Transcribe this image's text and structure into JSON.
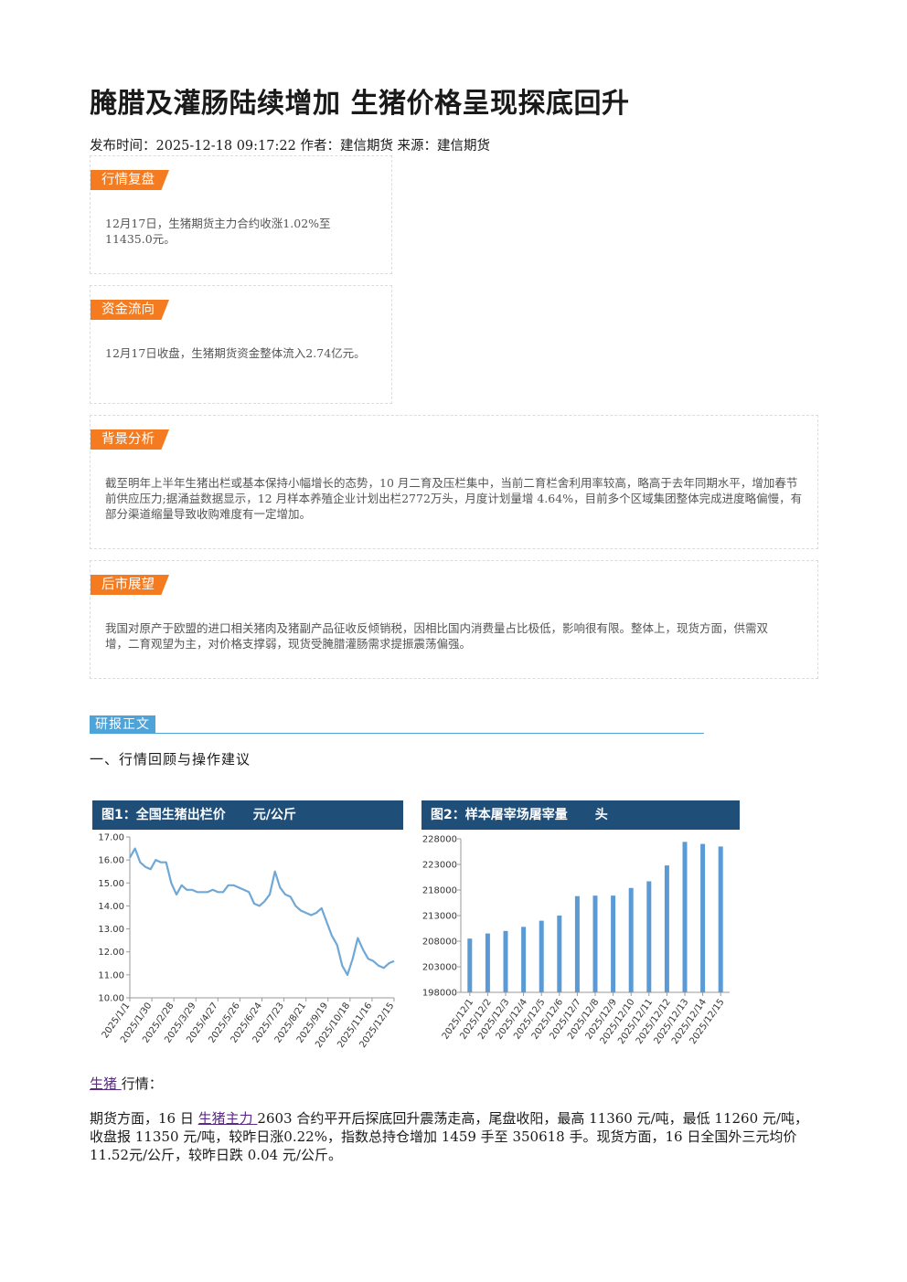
{
  "article": {
    "title": "腌腊及灌肠陆续增加 生猪价格呈现探底回升",
    "meta": "发布时间：2025-12-18 09:17:22 作者：建信期货 来源：建信期货"
  },
  "sections": {
    "review": {
      "tag": "行情复盘",
      "text": "12月17日，生猪期货主力合约收涨1.02%至11435.0元。"
    },
    "fund": {
      "tag": "资金流向",
      "text": "12月17日收盘，生猪期货资金整体流入2.74亿元。"
    },
    "background": {
      "tag": "背景分析",
      "text": "截至明年上半年生猪出栏或基本保持小幅增长的态势，10 月二育及压栏集中，当前二育栏舍利用率较高，略高于去年同期水平，增加春节前供应压力;据涌益数据显示，12 月样本养殖企业计划出栏2772万头，月度计划量增 4.64%，目前多个区域集团整体完成进度略偏慢，有部分渠道缩量导致收购难度有一定增加。"
    },
    "outlook": {
      "tag": "后市展望",
      "text": "我国对原产于欧盟的进口相关猪肉及猪副产品征收反倾销税，因相比国内消费量占比极低，影响很有限。整体上，现货方面，供需双增，二育观望为主，对价格支撑弱，现货受腌腊灌肠需求提振震荡偏强。"
    }
  },
  "report": {
    "label": "研报正文",
    "heading": "一、行情回顾与操作建议",
    "p1_link": "生猪 ",
    "p1_rest": "行情：",
    "p2_a": "期货方面，16 日 ",
    "p2_link": "生猪主力 ",
    "p2_b": "2603 合约平开后探底回升震荡走高，尾盘收阳，最高 11360 元/吨，最低 11260 元/吨，收盘报 11350 元/吨，较昨日涨0.22%，指数总持仓增加 1459 手至 350618 手。现货方面，16 日全国外三元均价 11.52元/公斤，较昨日跌 0.04 元/公斤。"
  },
  "chart_data": [
    {
      "type": "line",
      "title": "图1：全国生猪出栏价",
      "unit": "元/公斤",
      "ylim": [
        10.0,
        17.0
      ],
      "yticks": [
        "17.00",
        "16.00",
        "15.00",
        "14.00",
        "13.00",
        "12.00",
        "11.00",
        "10.00"
      ],
      "xticks": [
        "2025/1/1",
        "2025/1/30",
        "2025/2/28",
        "2025/3/29",
        "2025/4/27",
        "2025/5/26",
        "2025/6/24",
        "2025/7/23",
        "2025/8/21",
        "2025/9/19",
        "2025/10/18",
        "2025/11/16",
        "2025/12/15"
      ],
      "x_start": "2025-01-01",
      "x_end": "2025-12-15",
      "series": [
        {
          "values": [
            16.1,
            16.5,
            15.9,
            15.7,
            15.6,
            16.0,
            15.9,
            15.9,
            15.0,
            14.5,
            14.9,
            14.7,
            14.7,
            14.6,
            14.6,
            14.6,
            14.7,
            14.6,
            14.6,
            14.9,
            14.9,
            14.8,
            14.7,
            14.6,
            14.1,
            14.0,
            14.2,
            14.5,
            15.5,
            14.8,
            14.5,
            14.4,
            14.0,
            13.8,
            13.7,
            13.6,
            13.7,
            13.9,
            13.3,
            12.7,
            12.3,
            11.4,
            11.0,
            11.7,
            12.6,
            12.1,
            11.7,
            11.6,
            11.4,
            11.3,
            11.5,
            11.6
          ]
        }
      ],
      "grid": false,
      "legend": "none"
    },
    {
      "type": "bar",
      "title": "图2：样本屠宰场屠宰量",
      "unit": "头",
      "ylim": [
        198000,
        228000
      ],
      "yticks": [
        "228000",
        "223000",
        "218000",
        "213000",
        "208000",
        "203000",
        "198000"
      ],
      "categories": [
        "2025/12/1",
        "2025/12/2",
        "2025/12/3",
        "2025/12/4",
        "2025/12/5",
        "2025/12/6",
        "2025/12/7",
        "2025/12/8",
        "2025/12/9",
        "2025/12/10",
        "2025/12/11",
        "2025/12/12",
        "2025/12/13",
        "2025/12/14",
        "2025/12/15"
      ],
      "values": [
        208500,
        209500,
        210000,
        210800,
        212000,
        213000,
        216800,
        216900,
        216900,
        218400,
        219700,
        222800,
        227400,
        227000,
        226500
      ],
      "grid": false,
      "legend": "none"
    }
  ]
}
